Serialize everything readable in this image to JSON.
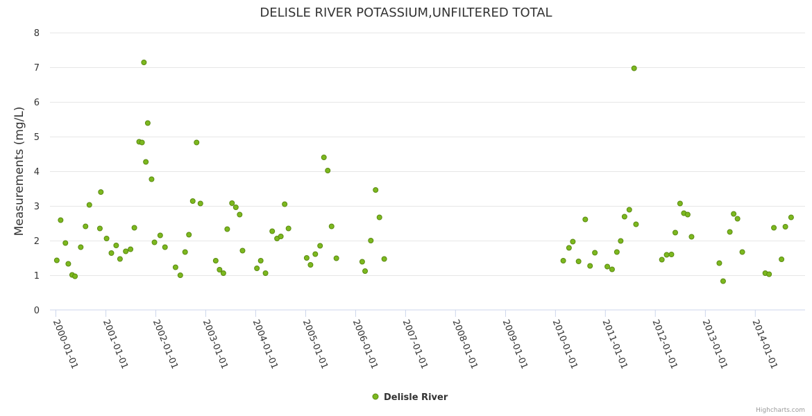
{
  "chart_data": {
    "type": "scatter",
    "title": "DELISLE RIVER POTASSIUM,UNFILTERED TOTAL",
    "xlabel": "",
    "ylabel": "Measurements (mg/L)",
    "ylim": [
      0,
      8
    ],
    "yticks": [
      0,
      1,
      2,
      3,
      4,
      5,
      6,
      7,
      8
    ],
    "xlim": [
      "1999-11-19",
      "2014-12-31"
    ],
    "xticks": [
      "2000-01-01",
      "2001-01-01",
      "2002-01-01",
      "2003-01-01",
      "2004-01-01",
      "2005-01-01",
      "2006-01-01",
      "2007-01-01",
      "2008-01-01",
      "2009-01-01",
      "2010-01-01",
      "2011-01-01",
      "2012-01-01",
      "2013-01-01",
      "2014-01-01"
    ],
    "grid": true,
    "legend": "bottom-center",
    "colors": {
      "marker_fill": "#7cb81f",
      "marker_stroke": "#5a8a10"
    },
    "series": [
      {
        "name": "Delisle River",
        "points": [
          [
            "2000-01-08",
            1.43
          ],
          [
            "2000-02-05",
            2.59
          ],
          [
            "2000-03-11",
            1.93
          ],
          [
            "2000-04-01",
            1.33
          ],
          [
            "2000-04-29",
            1.01
          ],
          [
            "2000-05-20",
            0.97
          ],
          [
            "2000-07-01",
            1.81
          ],
          [
            "2000-08-05",
            2.41
          ],
          [
            "2000-09-02",
            3.03
          ],
          [
            "2000-11-18",
            2.35
          ],
          [
            "2000-11-25",
            3.4
          ],
          [
            "2001-01-06",
            2.06
          ],
          [
            "2001-02-10",
            1.64
          ],
          [
            "2001-03-17",
            1.86
          ],
          [
            "2001-04-14",
            1.47
          ],
          [
            "2001-05-26",
            1.69
          ],
          [
            "2001-06-30",
            1.75
          ],
          [
            "2001-07-28",
            2.37
          ],
          [
            "2001-09-01",
            4.85
          ],
          [
            "2001-09-22",
            4.83
          ],
          [
            "2001-10-06",
            7.14
          ],
          [
            "2001-10-20",
            4.27
          ],
          [
            "2001-11-03",
            5.39
          ],
          [
            "2001-12-01",
            3.77
          ],
          [
            "2001-12-22",
            1.95
          ],
          [
            "2002-02-02",
            2.15
          ],
          [
            "2002-03-09",
            1.81
          ],
          [
            "2002-05-25",
            1.23
          ],
          [
            "2002-06-29",
            1.0
          ],
          [
            "2002-08-03",
            1.67
          ],
          [
            "2002-08-31",
            2.17
          ],
          [
            "2002-09-28",
            3.14
          ],
          [
            "2002-10-26",
            4.83
          ],
          [
            "2002-11-23",
            3.07
          ],
          [
            "2003-03-15",
            1.42
          ],
          [
            "2003-04-12",
            1.16
          ],
          [
            "2003-05-10",
            1.06
          ],
          [
            "2003-06-07",
            2.33
          ],
          [
            "2003-07-12",
            3.08
          ],
          [
            "2003-08-09",
            2.96
          ],
          [
            "2003-09-06",
            2.75
          ],
          [
            "2003-09-27",
            1.71
          ],
          [
            "2004-01-10",
            1.2
          ],
          [
            "2004-02-07",
            1.42
          ],
          [
            "2004-03-13",
            1.06
          ],
          [
            "2004-05-01",
            2.27
          ],
          [
            "2004-06-05",
            2.06
          ],
          [
            "2004-07-03",
            2.12
          ],
          [
            "2004-07-31",
            3.05
          ],
          [
            "2004-08-28",
            2.35
          ],
          [
            "2005-01-08",
            1.5
          ],
          [
            "2005-02-05",
            1.3
          ],
          [
            "2005-03-12",
            1.61
          ],
          [
            "2005-04-16",
            1.85
          ],
          [
            "2005-05-14",
            4.4
          ],
          [
            "2005-06-11",
            4.02
          ],
          [
            "2005-07-09",
            2.41
          ],
          [
            "2005-08-13",
            1.49
          ],
          [
            "2006-02-18",
            1.39
          ],
          [
            "2006-03-11",
            1.12
          ],
          [
            "2006-04-22",
            2.0
          ],
          [
            "2006-05-27",
            3.46
          ],
          [
            "2006-06-24",
            2.67
          ],
          [
            "2006-07-29",
            1.47
          ],
          [
            "2010-02-27",
            1.42
          ],
          [
            "2010-04-10",
            1.79
          ],
          [
            "2010-05-08",
            1.97
          ],
          [
            "2010-06-19",
            1.4
          ],
          [
            "2010-08-07",
            2.61
          ],
          [
            "2010-09-11",
            1.27
          ],
          [
            "2010-10-16",
            1.65
          ],
          [
            "2011-01-15",
            1.25
          ],
          [
            "2011-02-19",
            1.17
          ],
          [
            "2011-03-26",
            1.67
          ],
          [
            "2011-04-23",
            1.99
          ],
          [
            "2011-05-21",
            2.69
          ],
          [
            "2011-06-25",
            2.89
          ],
          [
            "2011-07-30",
            6.97
          ],
          [
            "2011-08-13",
            2.47
          ],
          [
            "2012-02-18",
            1.45
          ],
          [
            "2012-03-24",
            1.59
          ],
          [
            "2012-04-28",
            1.6
          ],
          [
            "2012-05-26",
            2.23
          ],
          [
            "2012-06-30",
            3.07
          ],
          [
            "2012-07-28",
            2.79
          ],
          [
            "2012-08-25",
            2.75
          ],
          [
            "2012-09-22",
            2.11
          ],
          [
            "2013-04-13",
            1.35
          ],
          [
            "2013-05-11",
            0.83
          ],
          [
            "2013-06-29",
            2.25
          ],
          [
            "2013-07-27",
            2.77
          ],
          [
            "2013-08-24",
            2.63
          ],
          [
            "2013-09-28",
            1.67
          ],
          [
            "2014-03-15",
            1.06
          ],
          [
            "2014-04-12",
            1.03
          ],
          [
            "2014-05-17",
            2.37
          ],
          [
            "2014-07-12",
            1.46
          ],
          [
            "2014-08-09",
            2.4
          ],
          [
            "2014-09-20",
            2.67
          ]
        ]
      }
    ],
    "credits": "Highcharts.com"
  }
}
